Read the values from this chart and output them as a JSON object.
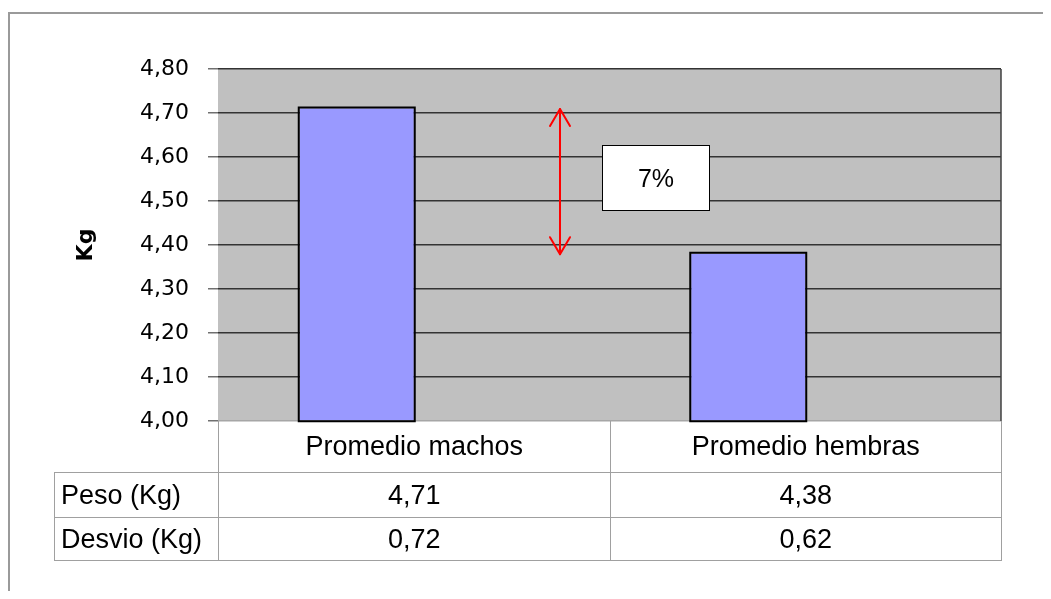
{
  "chart_data": {
    "type": "bar",
    "ylabel": "Kg",
    "categories": [
      "Promedio machos",
      "Promedio hembras"
    ],
    "series": [
      {
        "name": "Peso (Kg)",
        "color": "#9999ff",
        "values": [
          4.71,
          4.38
        ],
        "value_labels": [
          "4,71",
          "4,38"
        ]
      }
    ],
    "ylim": [
      4,
      4.8
    ],
    "yticks": [
      {
        "value": 4,
        "label": "4,00"
      },
      {
        "value": 4.1,
        "label": "4,10"
      },
      {
        "value": 4.2,
        "label": "4,20"
      },
      {
        "value": 4.3,
        "label": "4,30"
      },
      {
        "value": 4.4,
        "label": "4,40"
      },
      {
        "value": 4.5,
        "label": "4,50"
      },
      {
        "value": 4.6,
        "label": "4,60"
      },
      {
        "value": 4.7,
        "label": "4,70"
      },
      {
        "value": 4.8,
        "label": "4,80"
      }
    ],
    "grid": "y",
    "annotations": [
      "7%",
      "Desvio (Kg)",
      "0,72",
      "0,62"
    ]
  }
}
